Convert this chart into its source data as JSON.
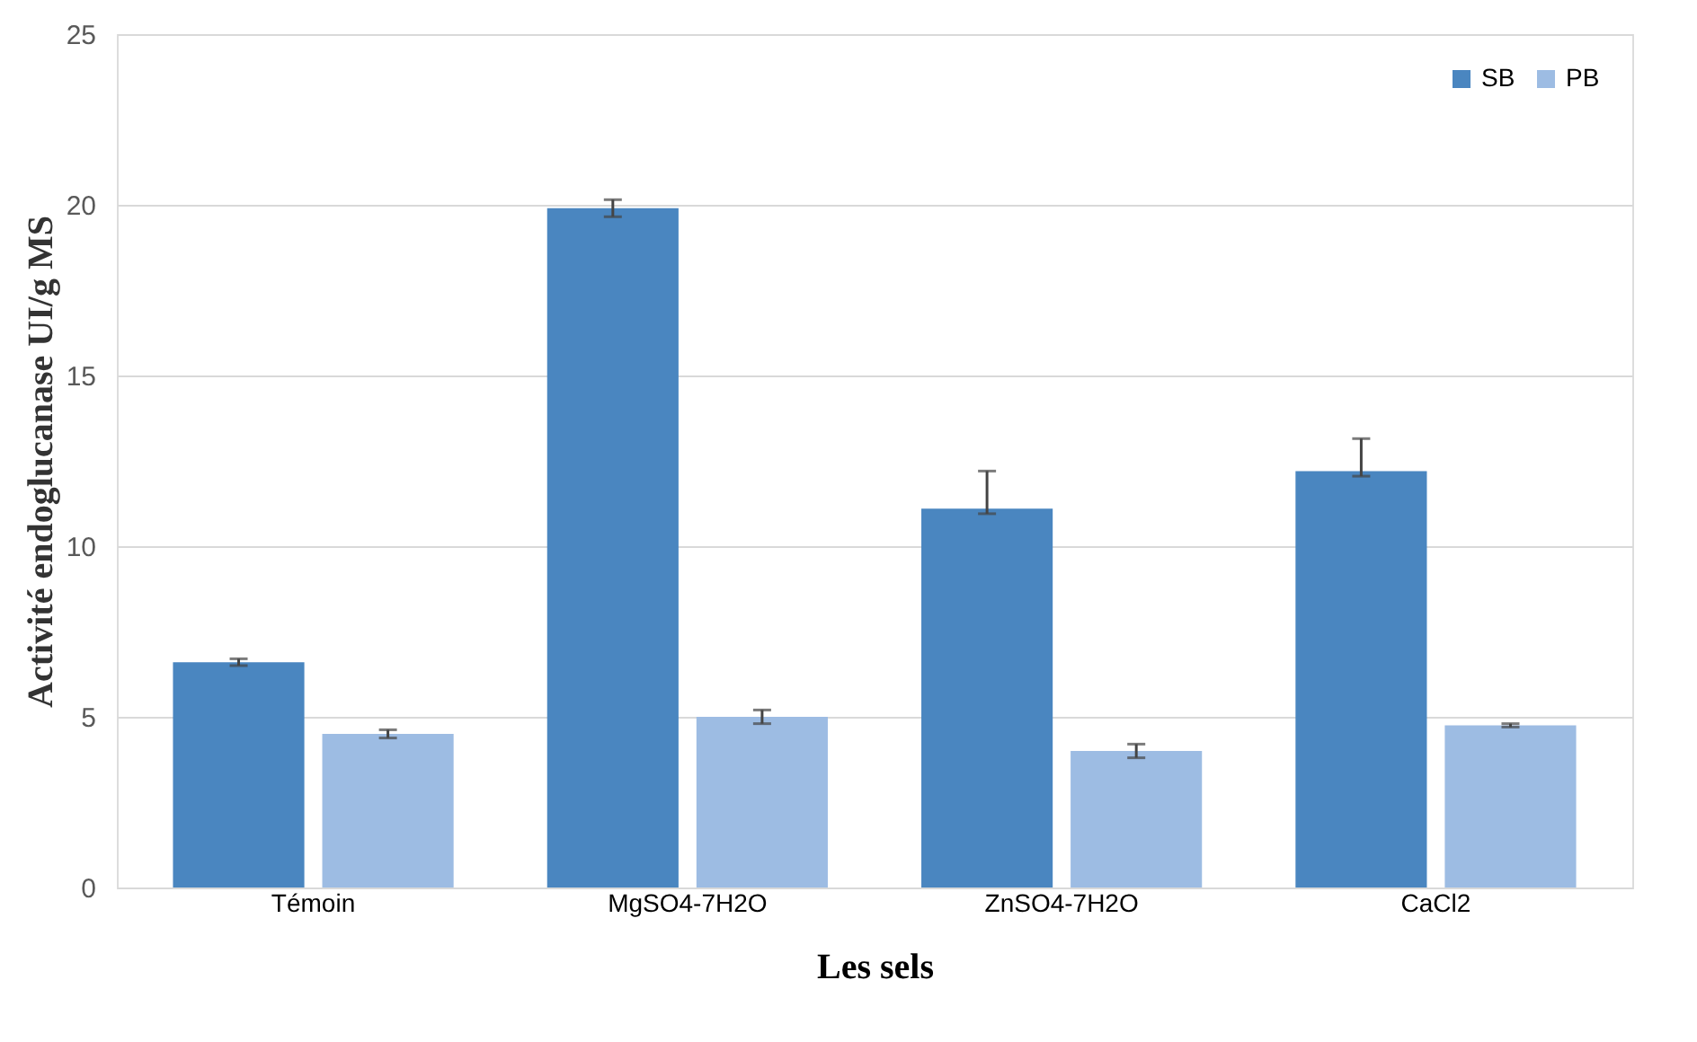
{
  "chart_data": {
    "type": "bar",
    "xlabel": "Les sels",
    "ylabel": "Activité endoglucanase UI/g MS",
    "categories": [
      "Témoin",
      "MgSO4-7H2O",
      "ZnSO4-7H2O",
      "CaCl2"
    ],
    "series": [
      {
        "name": "SB",
        "color": "#4a86c0",
        "values": [
          6.6,
          19.9,
          11.1,
          12.2
        ],
        "errors": [
          0.1,
          0.25,
          [
            10.95,
            12.2
          ],
          [
            12.05,
            13.15
          ]
        ]
      },
      {
        "name": "PB",
        "color": "#9dbce3",
        "values": [
          4.5,
          5.0,
          4.0,
          4.75
        ],
        "errors": [
          0.12,
          0.2,
          0.2,
          0.05
        ]
      }
    ],
    "ylim": [
      0,
      25
    ],
    "yticks": [
      0,
      5,
      10,
      15,
      20,
      25
    ],
    "grid": "y",
    "legend": "top right"
  }
}
